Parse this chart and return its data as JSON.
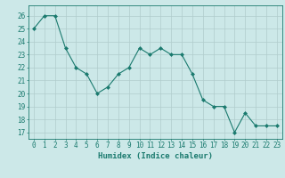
{
  "x": [
    0,
    1,
    2,
    3,
    4,
    5,
    6,
    7,
    8,
    9,
    10,
    11,
    12,
    13,
    14,
    15,
    16,
    17,
    18,
    19,
    20,
    21,
    22,
    23
  ],
  "y": [
    25,
    26,
    26,
    23.5,
    22,
    21.5,
    20,
    20.5,
    21.5,
    22,
    23.5,
    23,
    23.5,
    23,
    23,
    21.5,
    19.5,
    19,
    19,
    17,
    18.5,
    17.5,
    17.5,
    17.5
  ],
  "xlabel": "Humidex (Indice chaleur)",
  "xlim": [
    -0.5,
    23.5
  ],
  "ylim": [
    16.5,
    26.8
  ],
  "yticks": [
    17,
    18,
    19,
    20,
    21,
    22,
    23,
    24,
    25,
    26
  ],
  "xticks": [
    0,
    1,
    2,
    3,
    4,
    5,
    6,
    7,
    8,
    9,
    10,
    11,
    12,
    13,
    14,
    15,
    16,
    17,
    18,
    19,
    20,
    21,
    22,
    23
  ],
  "line_color": "#1a7a6e",
  "marker_color": "#1a7a6e",
  "bg_color": "#cce8e8",
  "grid_color": "#b0cccc",
  "axis_color": "#1a7a6e",
  "tick_color": "#1a7a6e",
  "label_color": "#1a7a6e",
  "font_size_axis": 5.5,
  "font_size_label": 6.5
}
